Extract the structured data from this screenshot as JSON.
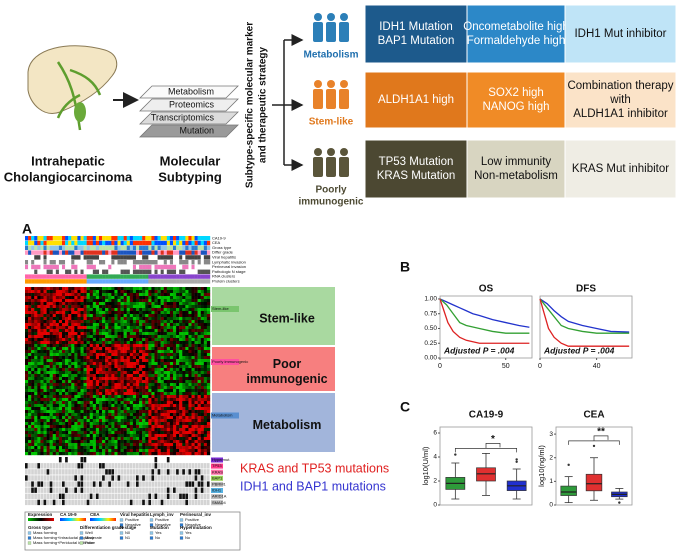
{
  "abstract": {
    "disease": [
      "Intrahepatic",
      "Cholangiocarcinoma"
    ],
    "layers": [
      "Metabolism",
      "Proteomics",
      "Transcriptomics",
      "Mutation"
    ],
    "subtyping": [
      "Molecular",
      "Subtyping"
    ],
    "strategy_label": [
      "Subtype-specific molecular marker",
      "and therapeutic strategy"
    ],
    "subtypes": [
      {
        "name": [
          "Metabolism"
        ],
        "marker": [
          "IDH1 Mutation",
          "BAP1 Mutation"
        ],
        "feature": [
          "Oncometabolite high",
          "Formaldehyde high"
        ],
        "therapy": [
          "IDH1 Mut inhibitor"
        ]
      },
      {
        "name": [
          "Stem-like"
        ],
        "marker": [
          "ALDH1A1 high"
        ],
        "feature": [
          "SOX2 high",
          "NANOG high"
        ],
        "therapy": [
          "Combination therapy",
          "with",
          "ALDH1A1 inhibitor"
        ]
      },
      {
        "name": [
          "Poorly",
          "immunogenic"
        ],
        "marker": [
          "TP53 Mutation",
          "KRAS Mutation"
        ],
        "feature": [
          "Low immunity",
          "Non-metabolism"
        ],
        "therapy": [
          "KRAS Mut inhibitor"
        ]
      }
    ]
  },
  "panel_a": {
    "label": "A",
    "annotation_rows": [
      "CA19-9",
      "CEA",
      "Gross type",
      "Differ grade",
      "Viral hepatitis",
      "Lymphatic invasion",
      "Perineural invasion",
      "Pathologic N stage",
      "RNA clusters",
      "Protein clusters"
    ],
    "clusters": [
      {
        "name": [
          "Stem-like"
        ],
        "tag": "Stem-like"
      },
      {
        "name": [
          "Poor",
          "immunogenic"
        ],
        "tag": "Poorly immunogenic"
      },
      {
        "name": [
          "Metabolism"
        ],
        "tag": "Metabolism"
      }
    ],
    "mutation_rows": [
      "Hypermut.",
      "TP53",
      "KRAS",
      "BAP1",
      "PBRM1",
      "IDH1",
      "ARID1A",
      "SMAD4"
    ],
    "notes": [
      "KRAS and TP53 mutations",
      "IDH1 and BAP1 mutations"
    ],
    "legend": [
      {
        "title": "Expression",
        "items": []
      },
      {
        "title": "CA 19-9",
        "items": []
      },
      {
        "title": "CEA",
        "items": []
      },
      {
        "title": "Viral hepatitis",
        "items": [
          "Positive",
          "Negative"
        ]
      },
      {
        "title": "Lymph_inv",
        "items": [
          "Positive",
          "Negative"
        ]
      },
      {
        "title": "Perineural_inv",
        "items": [
          "Positive",
          "Negative"
        ]
      },
      {
        "title": "Gross type",
        "items": [
          "Mass forming",
          "Mass forming+Intraductal papillary",
          "Mass forming+Periductal infiltrative"
        ]
      },
      {
        "title": "Differentiation grade",
        "items": [
          "Well",
          "Moderate",
          "Poor"
        ]
      },
      {
        "title": "N stage",
        "items": [
          "N0",
          "N1"
        ]
      },
      {
        "title": "Mutation",
        "items": [
          "Yes",
          "No"
        ]
      },
      {
        "title": "Hypermutation",
        "items": [
          "Yes",
          "No"
        ]
      }
    ]
  },
  "panel_b": {
    "label": "B"
  },
  "panel_c": {
    "label": "C"
  },
  "chart_data": [
    {
      "type": "line",
      "title": "OS",
      "annotation": "Adjusted P = .004",
      "xlim": [
        0,
        70
      ],
      "xticks": [
        0,
        50
      ],
      "ylim": [
        0,
        1.05
      ],
      "yticks": [
        {
          "value": 0,
          "label": "0.00"
        },
        {
          "value": 0.25,
          "label": "0.25"
        },
        {
          "value": 0.5,
          "label": "0.50"
        },
        {
          "value": 0.75,
          "label": "0.75"
        },
        {
          "value": 1,
          "label": "1.00"
        }
      ],
      "series": [
        {
          "color": "#2233cc",
          "x": [
            0,
            5,
            10,
            15,
            20,
            25,
            30,
            40,
            50,
            60,
            68
          ],
          "values": [
            1,
            0.95,
            0.9,
            0.85,
            0.8,
            0.75,
            0.72,
            0.65,
            0.6,
            0.55,
            0.52
          ]
        },
        {
          "color": "#33a033",
          "x": [
            0,
            5,
            10,
            15,
            20,
            30,
            40,
            50,
            68
          ],
          "values": [
            1,
            0.9,
            0.75,
            0.6,
            0.55,
            0.5,
            0.45,
            0.42,
            0.42
          ]
        },
        {
          "color": "#dd2222",
          "x": [
            0,
            3,
            6,
            10,
            15,
            20,
            30,
            68
          ],
          "values": [
            1,
            0.8,
            0.6,
            0.45,
            0.35,
            0.3,
            0.25,
            0.25
          ]
        }
      ]
    },
    {
      "type": "line",
      "title": "DFS",
      "annotation": "Adjusted P = .004",
      "xlim": [
        0,
        65
      ],
      "xticks": [
        0,
        40
      ],
      "ylim": [
        0,
        1.05
      ],
      "series": [
        {
          "color": "#2233cc",
          "x": [
            0,
            5,
            10,
            15,
            20,
            30,
            40,
            50,
            63
          ],
          "values": [
            1,
            0.92,
            0.8,
            0.7,
            0.62,
            0.55,
            0.5,
            0.45,
            0.44
          ]
        },
        {
          "color": "#33a033",
          "x": [
            0,
            5,
            10,
            15,
            20,
            30,
            40,
            63
          ],
          "values": [
            1,
            0.85,
            0.7,
            0.55,
            0.5,
            0.45,
            0.42,
            0.42
          ]
        },
        {
          "color": "#dd2222",
          "x": [
            0,
            3,
            6,
            10,
            15,
            20,
            63
          ],
          "values": [
            1,
            0.75,
            0.5,
            0.35,
            0.25,
            0.2,
            0.2
          ]
        }
      ]
    },
    {
      "type": "box",
      "title": "CA19-9",
      "y_label": "log10(U/ml)",
      "significance": "*",
      "ylim": [
        0,
        6.5
      ],
      "yticks": [
        0,
        2,
        4,
        6
      ],
      "boxes": [
        {
          "color": "#2e9a3a",
          "min": 0.5,
          "q1": 1.3,
          "median": 1.8,
          "q3": 2.3,
          "max": 3.5,
          "outliers": [
            4.2
          ]
        },
        {
          "color": "#e03030",
          "min": 0.8,
          "q1": 2.0,
          "median": 2.6,
          "q3": 3.1,
          "max": 4.3,
          "outliers": []
        },
        {
          "color": "#2030d0",
          "min": 0.5,
          "q1": 1.2,
          "median": 1.6,
          "q3": 2.0,
          "max": 3.0,
          "outliers": [
            3.6,
            3.8
          ]
        }
      ]
    },
    {
      "type": "box",
      "title": "CEA",
      "y_label": "log10(ng/ml)",
      "significance": "**",
      "ylim": [
        0,
        3.3
      ],
      "yticks": [
        0,
        1,
        2,
        3
      ],
      "boxes": [
        {
          "color": "#2e9a3a",
          "min": 0.1,
          "q1": 0.4,
          "median": 0.55,
          "q3": 0.8,
          "max": 1.2,
          "outliers": [
            1.7
          ]
        },
        {
          "color": "#e03030",
          "min": 0.2,
          "q1": 0.6,
          "median": 0.9,
          "q3": 1.3,
          "max": 2.0,
          "outliers": [
            2.5
          ]
        },
        {
          "color": "#2030d0",
          "min": 0.25,
          "q1": 0.35,
          "median": 0.45,
          "q3": 0.55,
          "max": 0.7,
          "outliers": [
            0.1
          ]
        }
      ]
    }
  ]
}
